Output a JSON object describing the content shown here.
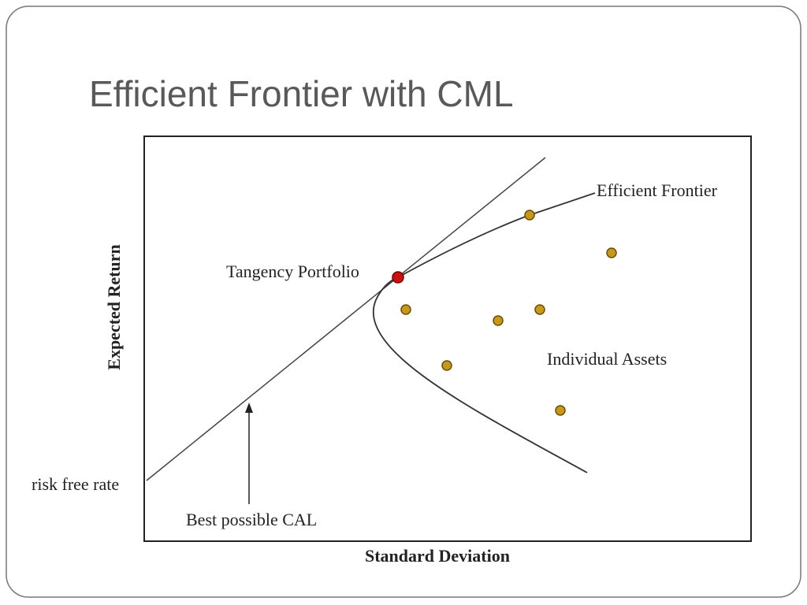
{
  "slide": {
    "title": "Efficient Frontier with CML"
  },
  "diagram": {
    "y_axis_label": "Expected Return",
    "x_axis_label": "Standard Deviation",
    "labels": {
      "efficient_frontier": "Efficient Frontier",
      "tangency_portfolio": "Tangency Portfolio",
      "individual_assets": "Individual Assets",
      "risk_free_rate": "risk free rate",
      "best_cal": "Best possible CAL"
    }
  }
}
